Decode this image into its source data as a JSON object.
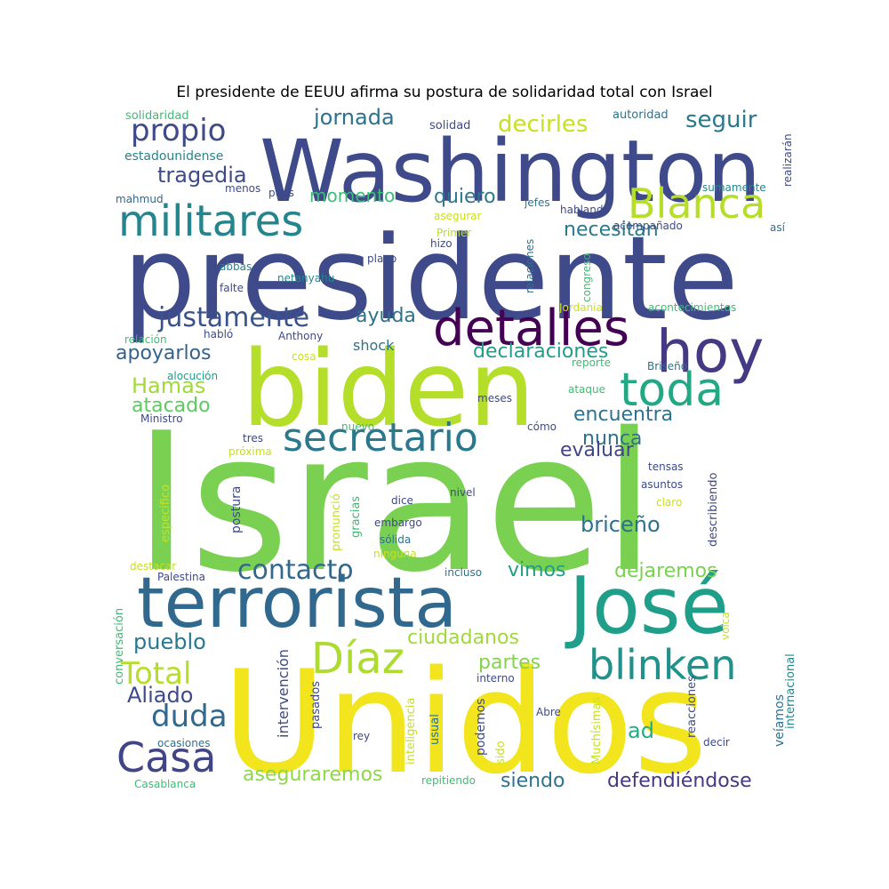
{
  "title": "El presidente de EEUU afirma su postura de solidaridad total con Israel",
  "words": [
    {
      "text": "Israel",
      "color": "#7ad151"
    },
    {
      "text": "Unidos",
      "color": "#f2e51d"
    },
    {
      "text": "presidente",
      "color": "#3e4a89"
    },
    {
      "text": "biden",
      "color": "#b5de2b"
    },
    {
      "text": "Washington",
      "color": "#3e4a89"
    },
    {
      "text": "terrorista",
      "color": "#31688e"
    },
    {
      "text": "José",
      "color": "#1f9e89"
    },
    {
      "text": "militares",
      "color": "#25858e"
    },
    {
      "text": "hoy",
      "color": "#443983"
    },
    {
      "text": "detalles",
      "color": "#440154"
    },
    {
      "text": "secretario",
      "color": "#2a788e"
    },
    {
      "text": "toda",
      "color": "#22a884"
    },
    {
      "text": "Blanca",
      "color": "#b5de2b"
    },
    {
      "text": "blinken",
      "color": "#21918c"
    },
    {
      "text": "Díaz",
      "color": "#addc30"
    },
    {
      "text": "Casa",
      "color": "#414487"
    },
    {
      "text": "justamente",
      "color": "#3b528b"
    },
    {
      "text": "contacto",
      "color": "#31688e"
    },
    {
      "text": "Total",
      "color": "#b5de2b"
    },
    {
      "text": "duda",
      "color": "#31688e"
    },
    {
      "text": "propio",
      "color": "#3e4a89"
    },
    {
      "text": "seguir",
      "color": "#2a788e"
    },
    {
      "text": "decirles",
      "color": "#c8e020"
    },
    {
      "text": "jornada",
      "color": "#2c728e"
    },
    {
      "text": "tragedia",
      "color": "#3e4a89"
    },
    {
      "text": "momento",
      "color": "#3dbc74"
    },
    {
      "text": "quiero",
      "color": "#2a788e"
    },
    {
      "text": "necesitan",
      "color": "#2a788e"
    },
    {
      "text": "ayuda",
      "color": "#2c728e"
    },
    {
      "text": "apoyarlos",
      "color": "#33638d"
    },
    {
      "text": "declaraciones",
      "color": "#1f9e89"
    },
    {
      "text": "Hamas",
      "color": "#a0da39"
    },
    {
      "text": "atacado",
      "color": "#5ec962"
    },
    {
      "text": "encuentra",
      "color": "#2c728e"
    },
    {
      "text": "nunca",
      "color": "#2c728e"
    },
    {
      "text": "evaluar",
      "color": "#414487"
    },
    {
      "text": "briceño",
      "color": "#2c728e"
    },
    {
      "text": "vimos",
      "color": "#1f9e89"
    },
    {
      "text": "dejaremos",
      "color": "#7ad151"
    },
    {
      "text": "pueblo",
      "color": "#2a788e"
    },
    {
      "text": "Aliado",
      "color": "#3e4a89"
    },
    {
      "text": "ciudadanos",
      "color": "#a0da39"
    },
    {
      "text": "partes",
      "color": "#84d44b"
    },
    {
      "text": "aseguraremos",
      "color": "#8fd744"
    },
    {
      "text": "siendo",
      "color": "#2c728e"
    },
    {
      "text": "defendiéndose",
      "color": "#443983"
    },
    {
      "text": "ad",
      "color": "#25ab82"
    },
    {
      "text": "shock",
      "color": "#2c728e"
    },
    {
      "text": "estadounidense",
      "color": "#25858e"
    },
    {
      "text": "solidaridad",
      "color": "#3dbc74"
    },
    {
      "text": "solidad",
      "color": "#3e4a89"
    },
    {
      "text": "autoridad",
      "color": "#2c728e"
    },
    {
      "text": "realizarán",
      "color": "#3e4a89"
    },
    {
      "text": "mahmud",
      "color": "#31688e"
    },
    {
      "text": "menos",
      "color": "#3e4a89"
    },
    {
      "text": "pues",
      "color": "#3e4a89"
    },
    {
      "text": "jefes",
      "color": "#2c728e"
    },
    {
      "text": "sumamente",
      "color": "#25858e"
    },
    {
      "text": "asegurar",
      "color": "#c8e020"
    },
    {
      "text": "hablando",
      "color": "#3e4a89"
    },
    {
      "text": "Primer",
      "color": "#b5de2b"
    },
    {
      "text": "acompañado",
      "color": "#3e4a89"
    },
    {
      "text": "así",
      "color": "#2c728e"
    },
    {
      "text": "hizo",
      "color": "#3e4a89"
    },
    {
      "text": "plano",
      "color": "#3e4a89"
    },
    {
      "text": "abbas",
      "color": "#25858e"
    },
    {
      "text": "falte",
      "color": "#3e4a89"
    },
    {
      "text": "netanyahu",
      "color": "#25858e"
    },
    {
      "text": "relaciones",
      "color": "#2c728e"
    },
    {
      "text": "congreso",
      "color": "#3dbc74"
    },
    {
      "text": "Jordania",
      "color": "#c8e020"
    },
    {
      "text": "acontecimientos",
      "color": "#3dbc74"
    },
    {
      "text": "relación",
      "color": "#3dbc74"
    },
    {
      "text": "habló",
      "color": "#3e4a89"
    },
    {
      "text": "Anthony",
      "color": "#3e4a89"
    },
    {
      "text": "cosa",
      "color": "#c8e020"
    },
    {
      "text": "reporte",
      "color": "#3dbc74"
    },
    {
      "text": "alocución",
      "color": "#1f9e89"
    },
    {
      "text": "Briseño",
      "color": "#2c728e"
    },
    {
      "text": "ataque",
      "color": "#3dbc74"
    },
    {
      "text": "meses",
      "color": "#3e4a89"
    },
    {
      "text": "Ministro",
      "color": "#3e4a89"
    },
    {
      "text": "nuevo",
      "color": "#3dbc74"
    },
    {
      "text": "cómo",
      "color": "#3e4a89"
    },
    {
      "text": "tres",
      "color": "#3e4a89"
    },
    {
      "text": "próxima",
      "color": "#c8e020"
    },
    {
      "text": "tensas",
      "color": "#3e4a89"
    },
    {
      "text": "asuntos",
      "color": "#3e4a89"
    },
    {
      "text": "dice",
      "color": "#3e4a89"
    },
    {
      "text": "nivel",
      "color": "#3e4a89"
    },
    {
      "text": "claro",
      "color": "#c8e020"
    },
    {
      "text": "embargo",
      "color": "#3e4a89"
    },
    {
      "text": "sólida",
      "color": "#2c728e"
    },
    {
      "text": "ninguna",
      "color": "#c8e020"
    },
    {
      "text": "incluso",
      "color": "#2c728e"
    },
    {
      "text": "postura",
      "color": "#3e4a89"
    },
    {
      "text": "específico",
      "color": "#c8e020"
    },
    {
      "text": "pronunció",
      "color": "#c8e020"
    },
    {
      "text": "gracias",
      "color": "#3dbc74"
    },
    {
      "text": "describiendo",
      "color": "#3e4a89"
    },
    {
      "text": "destacar",
      "color": "#c8e020"
    },
    {
      "text": "Palestina",
      "color": "#3e4a89"
    },
    {
      "text": "conversación",
      "color": "#3dbc74"
    },
    {
      "text": "intervención",
      "color": "#3e4a89"
    },
    {
      "text": "volca",
      "color": "#c8e020"
    },
    {
      "text": "internacional",
      "color": "#25858e"
    },
    {
      "text": "interno",
      "color": "#3e4a89"
    },
    {
      "text": "reacciones",
      "color": "#3e4a89"
    },
    {
      "text": "pasados",
      "color": "#3e4a89"
    },
    {
      "text": "inteligencia",
      "color": "#c8e020"
    },
    {
      "text": "usual",
      "color": "#2c728e"
    },
    {
      "text": "podemos",
      "color": "#3e4a89"
    },
    {
      "text": "sido",
      "color": "#c8e020"
    },
    {
      "text": "Muchísimas",
      "color": "#c8e020"
    },
    {
      "text": "Abre",
      "color": "#3e4a89"
    },
    {
      "text": "veíamos",
      "color": "#2c728e"
    },
    {
      "text": "decir",
      "color": "#3e4a89"
    },
    {
      "text": "rey",
      "color": "#3e4a89"
    },
    {
      "text": "ocasiones",
      "color": "#2c728e"
    },
    {
      "text": "Casablanca",
      "color": "#3dbc74"
    },
    {
      "text": "repitiendo",
      "color": "#3dbc74"
    }
  ]
}
